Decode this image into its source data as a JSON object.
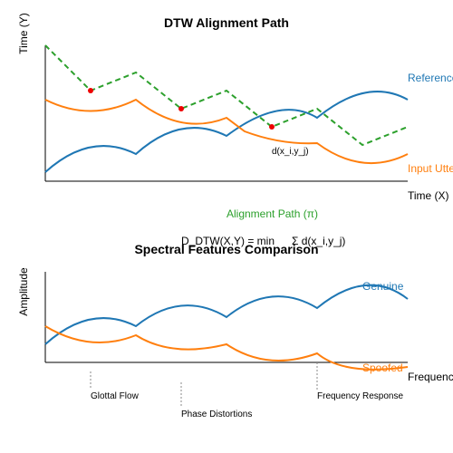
{
  "top": {
    "title": "DTW Alignment Path",
    "y_label": "Time (Y)",
    "x_label": "Time (X)",
    "reference": "Reference",
    "input": "Input Utterance",
    "distance": "d(x_i,y_j)",
    "path": "Alignment Path (π)",
    "formula_left": "D_DTW(X,Y) = min",
    "formula_right": "Σ d(x_i,y_j)"
  },
  "bottom": {
    "title": "Spectral Features Comparison",
    "y_label": "Amplitude",
    "x_label": "Frequency",
    "genuine": "Genuine",
    "spoofed": "Spoofed",
    "annotations": [
      "Glottal Flow",
      "Phase Distortions",
      "Frequency Response"
    ]
  }
}
